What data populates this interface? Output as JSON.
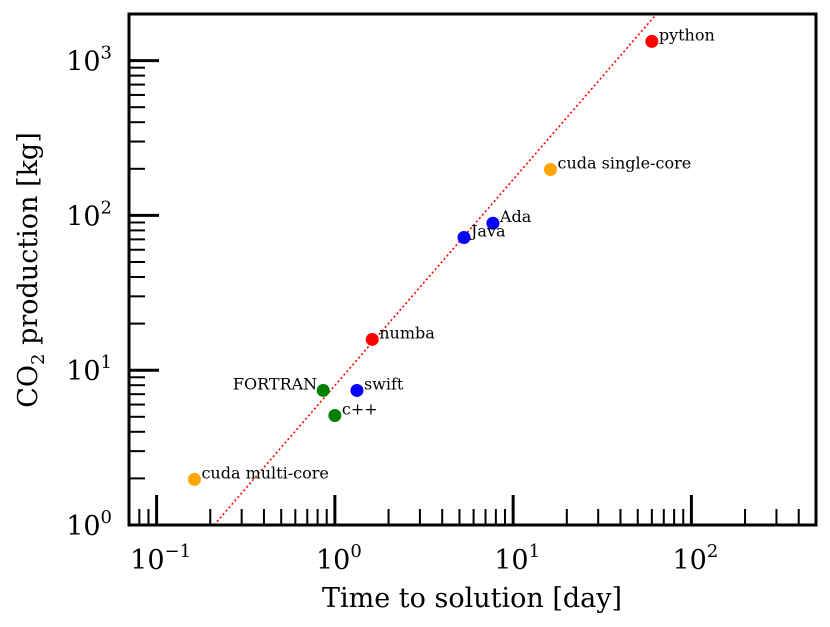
{
  "chart_data": {
    "type": "scatter",
    "title": "",
    "xlabel": "Time to solution [day]",
    "ylabel_parts": {
      "pre": "CO",
      "sub": "2",
      "post": " production [kg]"
    },
    "xscale": "log",
    "yscale": "log",
    "xlim": [
      0.07,
      500
    ],
    "ylim": [
      1,
      2000
    ],
    "grid": false,
    "legend": "none",
    "x_ticks": [
      {
        "value": 0.1,
        "base": "10",
        "exp": "−1"
      },
      {
        "value": 1,
        "base": "10",
        "exp": "0"
      },
      {
        "value": 10,
        "base": "10",
        "exp": "1"
      },
      {
        "value": 100,
        "base": "10",
        "exp": "2"
      }
    ],
    "y_ticks": [
      {
        "value": 1,
        "base": "10",
        "exp": "0"
      },
      {
        "value": 10,
        "base": "10",
        "exp": "1"
      },
      {
        "value": 100,
        "base": "10",
        "exp": "2"
      },
      {
        "value": 1000,
        "base": "10",
        "exp": "3"
      }
    ],
    "trend_line": {
      "style": "dotted",
      "color": "#ff0000",
      "slope_loglog": 1.33,
      "x_at_y1": 0.21
    },
    "points": [
      {
        "label": "python",
        "x": 60,
        "y": 1330,
        "color": "#ff0000",
        "label_pos": "right"
      },
      {
        "label": "cuda single-core",
        "x": 16.2,
        "y": 198,
        "color": "#ffa500",
        "label_pos": "right"
      },
      {
        "label": "Ada",
        "x": 7.7,
        "y": 89,
        "color": "#0000ff",
        "label_pos": "right"
      },
      {
        "label": "Java",
        "x": 5.3,
        "y": 72,
        "color": "#0000ff",
        "label_pos": "right"
      },
      {
        "label": "numba",
        "x": 1.62,
        "y": 15.8,
        "color": "#ff0000",
        "label_pos": "right"
      },
      {
        "label": "swift",
        "x": 1.33,
        "y": 7.4,
        "color": "#0000ff",
        "label_pos": "right"
      },
      {
        "label": "FORTRAN",
        "x": 0.86,
        "y": 7.4,
        "color": "#008000",
        "label_pos": "left"
      },
      {
        "label": "c++",
        "x": 1.0,
        "y": 5.1,
        "color": "#008000",
        "label_pos": "right"
      },
      {
        "label": "cuda multi-core",
        "x": 0.163,
        "y": 1.97,
        "color": "#ffa500",
        "label_pos": "right"
      }
    ]
  }
}
